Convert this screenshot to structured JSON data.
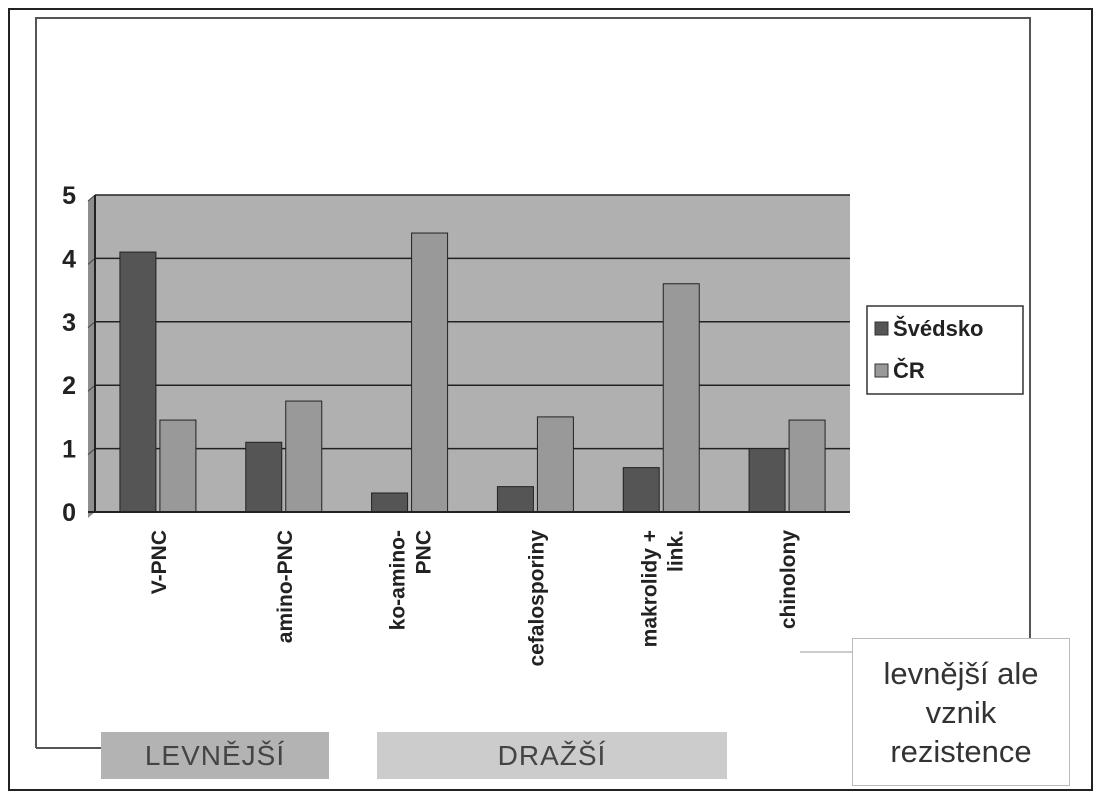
{
  "chart_data": {
    "type": "bar",
    "categories": [
      "V-PNC",
      "amino-PNC",
      "ko-amino-PNC",
      "cefalosporiny",
      "makrolidy + link.",
      "chinolony"
    ],
    "category_lines": [
      [
        "V-PNC"
      ],
      [
        "amino-PNC"
      ],
      [
        "ko-amino-",
        "PNC"
      ],
      [
        "cefalosporiny"
      ],
      [
        "makrolidy +",
        "link."
      ],
      [
        "chinolony"
      ]
    ],
    "series": [
      {
        "name": "Švédsko",
        "values": [
          4.1,
          1.1,
          0.3,
          0.4,
          0.7,
          1.0
        ],
        "color": "#555555"
      },
      {
        "name": "ČR",
        "values": [
          1.45,
          1.75,
          4.4,
          1.5,
          3.6,
          1.45
        ],
        "color": "#999999"
      }
    ],
    "ylim": [
      0,
      5
    ],
    "yticks": [
      "0",
      "1",
      "2",
      "3",
      "4",
      "5"
    ],
    "grid": true,
    "legend_position": "right",
    "plot_background": "#b0b0b0"
  },
  "annotations": {
    "callout_lines": [
      "levnější ale",
      "vznik",
      "rezistence"
    ],
    "group_cheaper": "LEVNĚJŠÍ",
    "group_expensive": "DRAŽŠÍ"
  }
}
